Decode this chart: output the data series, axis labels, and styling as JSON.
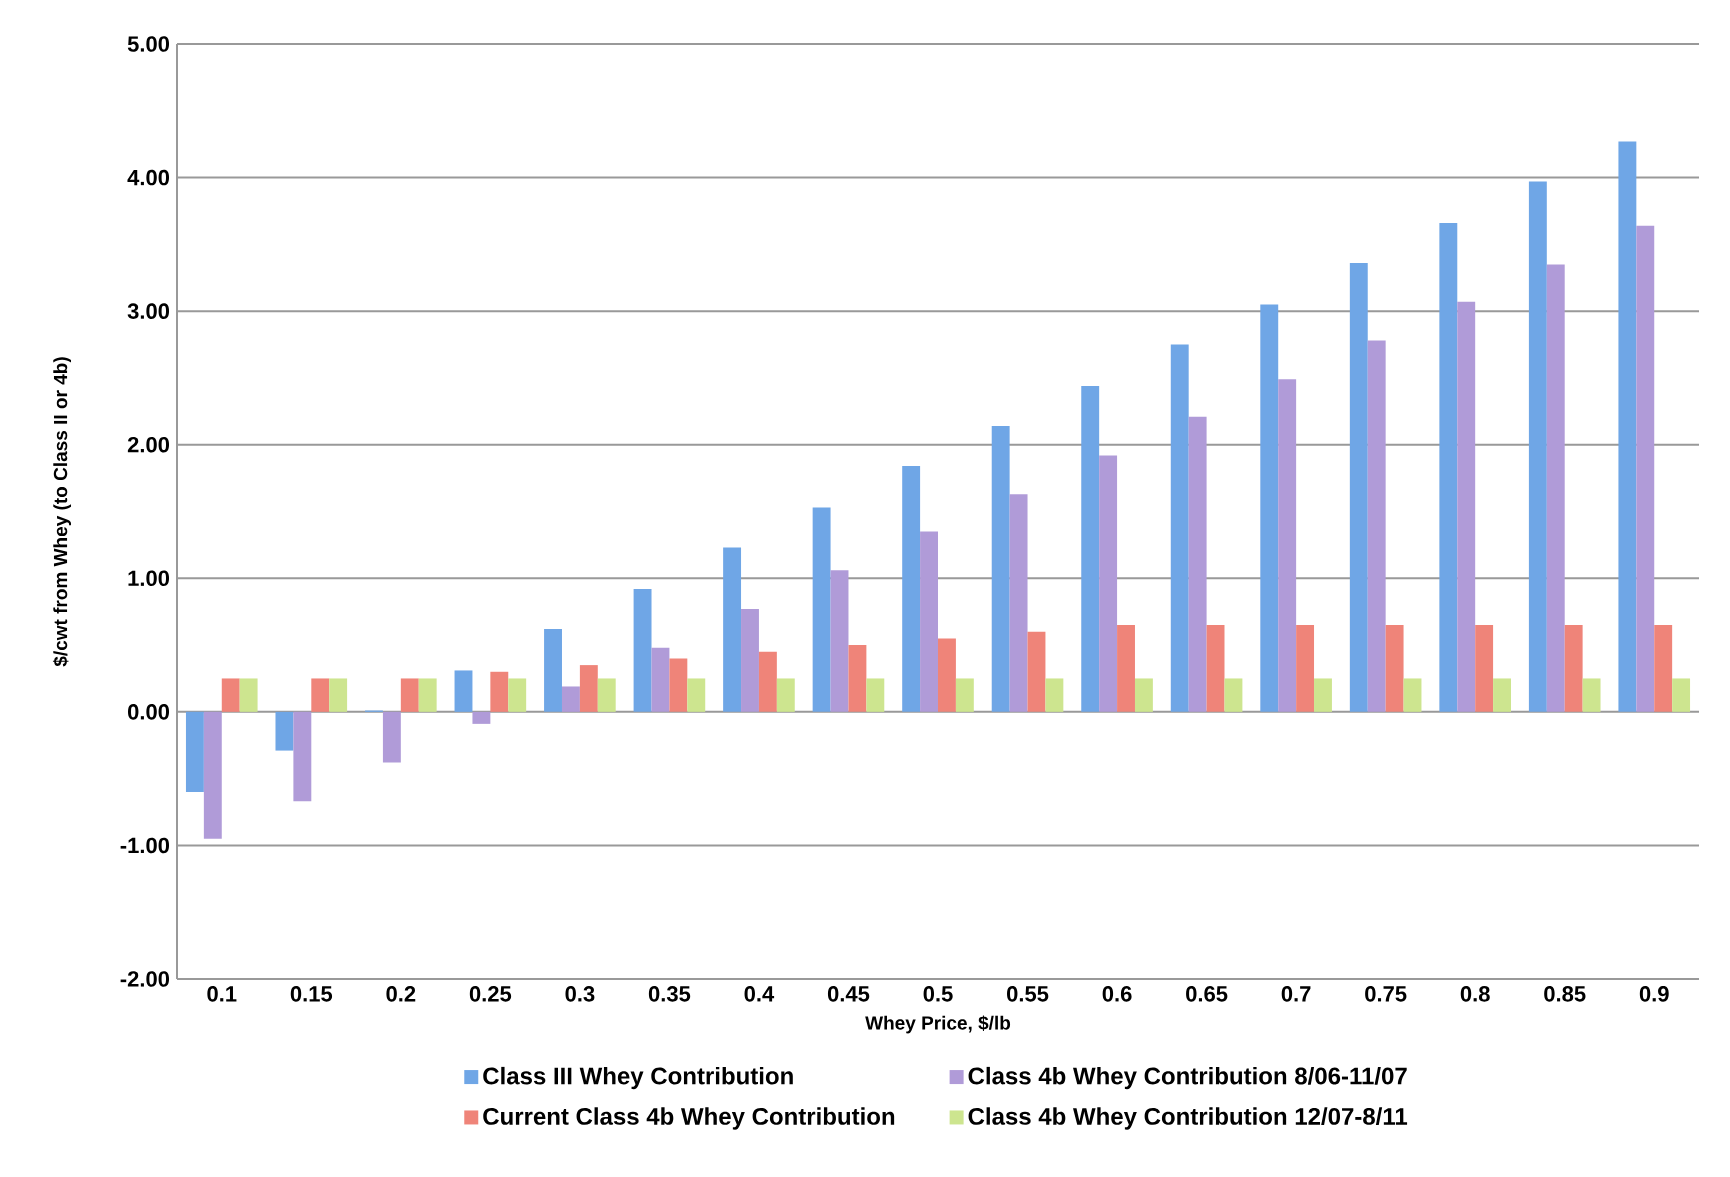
{
  "chart_data": {
    "type": "bar",
    "xlabel": "Whey Price, $/lb",
    "ylabel": "$/cwt from Whey (to Class II or 4b)",
    "categories": [
      "0.1",
      "0.15",
      "0.2",
      "0.25",
      "0.3",
      "0.35",
      "0.4",
      "0.45",
      "0.5",
      "0.55",
      "0.6",
      "0.65",
      "0.7",
      "0.75",
      "0.8",
      "0.85",
      "0.9"
    ],
    "series": [
      {
        "name": "Class III Whey Contribution",
        "color": "#6fa6e6",
        "values": [
          -0.6,
          -0.29,
          0.01,
          0.31,
          0.62,
          0.92,
          1.23,
          1.53,
          1.84,
          2.14,
          2.44,
          2.75,
          3.05,
          3.36,
          3.66,
          3.97,
          4.27
        ]
      },
      {
        "name": "Class 4b Whey Contribution 8/06-11/07",
        "color": "#b09bd8",
        "values": [
          -0.95,
          -0.67,
          -0.38,
          -0.09,
          0.19,
          0.48,
          0.77,
          1.06,
          1.35,
          1.63,
          1.92,
          2.21,
          2.49,
          2.78,
          3.07,
          3.35,
          3.64
        ]
      },
      {
        "name": "Current Class 4b Whey Contribution",
        "color": "#ef8479",
        "values": [
          0.25,
          0.25,
          0.25,
          0.3,
          0.35,
          0.4,
          0.45,
          0.5,
          0.55,
          0.6,
          0.65,
          0.65,
          0.65,
          0.65,
          0.65,
          0.65,
          0.65
        ]
      },
      {
        "name": "Class 4b Whey Contribution 12/07-8/11",
        "color": "#cde58f",
        "values": [
          0.25,
          0.25,
          0.25,
          0.25,
          0.25,
          0.25,
          0.25,
          0.25,
          0.25,
          0.25,
          0.25,
          0.25,
          0.25,
          0.25,
          0.25,
          0.25,
          0.25
        ]
      }
    ],
    "ylim": [
      -2,
      5
    ],
    "yticks": [
      {
        "value": -2,
        "label": "-2.00"
      },
      {
        "value": -1,
        "label": "-1.00"
      },
      {
        "value": 0,
        "label": "0.00"
      },
      {
        "value": 1,
        "label": "1.00"
      },
      {
        "value": 2,
        "label": "2.00"
      },
      {
        "value": 3,
        "label": "3.00"
      },
      {
        "value": 4,
        "label": "4.00"
      },
      {
        "value": 5,
        "label": "5.00"
      }
    ],
    "grid": "y",
    "legend": "bottom"
  }
}
